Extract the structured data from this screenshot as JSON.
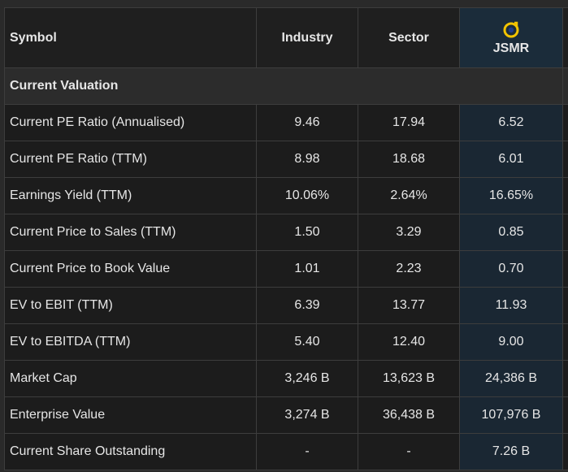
{
  "header": {
    "symbol_label": "Symbol",
    "industry_label": "Industry",
    "sector_label": "Sector",
    "ticker": "JSMR",
    "ticker_logo_icon": "jsmr-logo-icon",
    "logo_colors": {
      "ring": "#f2c300",
      "inner": "#1e3a8a"
    }
  },
  "section": {
    "title": "Current Valuation"
  },
  "rows": [
    {
      "label": "Current PE Ratio (Annualised)",
      "industry": "9.46",
      "sector": "17.94",
      "jsmr": "6.52"
    },
    {
      "label": "Current PE Ratio (TTM)",
      "industry": "8.98",
      "sector": "18.68",
      "jsmr": "6.01"
    },
    {
      "label": "Earnings Yield (TTM)",
      "industry": "10.06%",
      "sector": "2.64%",
      "jsmr": "16.65%"
    },
    {
      "label": "Current Price to Sales (TTM)",
      "industry": "1.50",
      "sector": "3.29",
      "jsmr": "0.85"
    },
    {
      "label": "Current Price to Book Value",
      "industry": "1.01",
      "sector": "2.23",
      "jsmr": "0.70"
    },
    {
      "label": "EV to EBIT (TTM)",
      "industry": "6.39",
      "sector": "13.77",
      "jsmr": "11.93"
    },
    {
      "label": "EV to EBITDA (TTM)",
      "industry": "5.40",
      "sector": "12.40",
      "jsmr": "9.00"
    },
    {
      "label": "Market Cap",
      "industry": "3,246 B",
      "sector": "13,623 B",
      "jsmr": "24,386 B"
    },
    {
      "label": "Enterprise Value",
      "industry": "3,274 B",
      "sector": "36,438 B",
      "jsmr": "107,976 B"
    },
    {
      "label": "Current Share Outstanding",
      "industry": "-",
      "sector": "-",
      "jsmr": "7.26 B"
    }
  ],
  "colors": {
    "background": "#1c1c1c",
    "highlight_column": "#1a2733",
    "section_row": "#2c2c2c",
    "border": "#3d3d3d",
    "text": "#e6e6e6"
  }
}
